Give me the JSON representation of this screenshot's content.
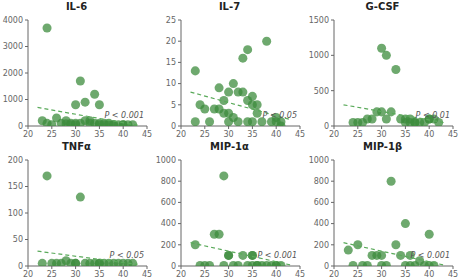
{
  "chart_data": [
    {
      "type": "scatter",
      "title": "IL-6",
      "annotation": "P < 0.001",
      "xlim": [
        20,
        45
      ],
      "xticks": [
        20,
        25,
        30,
        35,
        40,
        45
      ],
      "ylim": [
        0,
        4000
      ],
      "yticks": [
        0,
        1000,
        2000,
        3000,
        4000
      ],
      "grid": false,
      "series": [
        {
          "type": "scatter",
          "color": "#3d8c3d",
          "marker": "circle",
          "x": [
            23,
            24,
            24,
            25,
            26,
            27,
            28,
            28,
            29,
            29,
            30,
            30,
            30,
            31,
            31,
            32,
            32,
            33,
            33,
            34,
            34,
            35,
            35,
            35,
            36,
            36,
            37,
            37,
            38,
            38,
            39,
            40,
            40,
            41,
            42
          ],
          "values": [
            200,
            3700,
            100,
            50,
            300,
            100,
            80,
            200,
            100,
            50,
            800,
            100,
            50,
            1700,
            100,
            900,
            200,
            200,
            100,
            1200,
            100,
            800,
            100,
            50,
            50,
            100,
            100,
            50,
            50,
            50,
            50,
            50,
            50,
            50,
            50
          ]
        },
        {
          "type": "line",
          "color": "#5aaa5a",
          "line_style": "dashed",
          "x": [
            22,
            43
          ],
          "values": [
            700,
            30
          ]
        }
      ]
    },
    {
      "type": "scatter",
      "title": "IL-7",
      "annotation": "P < 0.05",
      "xlim": [
        20,
        45
      ],
      "xticks": [
        20,
        25,
        30,
        35,
        40,
        45
      ],
      "ylim": [
        0,
        25
      ],
      "yticks": [
        0,
        5,
        10,
        15,
        20,
        25
      ],
      "grid": false,
      "series": [
        {
          "type": "scatter",
          "color": "#3d8c3d",
          "marker": "circle",
          "x": [
            23,
            23,
            24,
            25,
            26,
            27,
            28,
            28,
            29,
            29,
            30,
            30,
            30,
            31,
            31,
            32,
            32,
            33,
            33,
            34,
            34,
            34,
            35,
            35,
            35,
            36,
            36,
            37,
            38,
            39,
            40,
            40,
            41,
            41
          ],
          "values": [
            13,
            1,
            5,
            4,
            1,
            4,
            9,
            4,
            6,
            3,
            8,
            3,
            1,
            10,
            2,
            8,
            1,
            16,
            8,
            18,
            6,
            1,
            7,
            5,
            1,
            5,
            3,
            1,
            20,
            1,
            2,
            1,
            1,
            0
          ]
        },
        {
          "type": "line",
          "color": "#5aaa5a",
          "line_style": "dashed",
          "x": [
            22,
            43
          ],
          "values": [
            8,
            1.5
          ]
        }
      ]
    },
    {
      "type": "scatter",
      "title": "G-CSF",
      "annotation": "P < 0.01",
      "xlim": [
        20,
        45
      ],
      "xticks": [
        20,
        25,
        30,
        35,
        40,
        45
      ],
      "ylim": [
        0,
        1500
      ],
      "yticks": [
        0,
        500,
        1000,
        1500
      ],
      "grid": false,
      "series": [
        {
          "type": "scatter",
          "color": "#3d8c3d",
          "marker": "circle",
          "x": [
            24,
            25,
            26,
            27,
            28,
            29,
            30,
            30,
            31,
            31,
            32,
            33,
            34,
            35,
            35,
            36,
            36,
            37,
            37,
            38,
            39,
            40,
            40,
            41,
            42
          ],
          "values": [
            50,
            50,
            50,
            100,
            100,
            200,
            1100,
            200,
            1000,
            100,
            200,
            800,
            100,
            50,
            100,
            100,
            50,
            50,
            50,
            50,
            50,
            100,
            100,
            100,
            50
          ]
        },
        {
          "type": "line",
          "color": "#5aaa5a",
          "line_style": "dashed",
          "x": [
            22,
            43
          ],
          "values": [
            300,
            50
          ]
        }
      ]
    },
    {
      "type": "scatter",
      "title": "TNFα",
      "annotation": "P < 0.05",
      "xlim": [
        20,
        45
      ],
      "xticks": [
        20,
        25,
        30,
        35,
        40,
        45
      ],
      "ylim": [
        0,
        200
      ],
      "yticks": [
        0,
        50,
        100,
        150,
        200
      ],
      "grid": false,
      "series": [
        {
          "type": "scatter",
          "color": "#3d8c3d",
          "marker": "circle",
          "x": [
            23,
            24,
            25,
            26,
            27,
            28,
            29,
            30,
            30,
            31,
            32,
            33,
            34,
            35,
            35,
            36,
            37,
            38,
            39,
            40,
            41,
            42
          ],
          "values": [
            5,
            170,
            5,
            5,
            5,
            10,
            5,
            5,
            5,
            130,
            5,
            5,
            5,
            5,
            5,
            5,
            5,
            5,
            5,
            5,
            5,
            5
          ]
        },
        {
          "type": "line",
          "color": "#5aaa5a",
          "line_style": "dashed",
          "x": [
            22,
            43
          ],
          "values": [
            28,
            3
          ]
        }
      ]
    },
    {
      "type": "scatter",
      "title": "MIP-1α",
      "annotation": "P < 0.001",
      "xlim": [
        20,
        45
      ],
      "xticks": [
        20,
        25,
        30,
        35,
        40,
        45
      ],
      "ylim": [
        0,
        1000
      ],
      "yticks": [
        0,
        200,
        400,
        600,
        800,
        1000
      ],
      "grid": false,
      "series": [
        {
          "type": "scatter",
          "color": "#3d8c3d",
          "marker": "circle",
          "x": [
            23,
            24,
            25,
            26,
            27,
            28,
            29,
            29,
            30,
            30,
            31,
            32,
            33,
            34,
            35,
            35,
            35,
            36,
            36,
            37,
            38,
            39,
            40,
            40,
            41
          ],
          "values": [
            200,
            5,
            5,
            5,
            300,
            300,
            5,
            850,
            100,
            100,
            5,
            5,
            100,
            5,
            100,
            100,
            5,
            5,
            5,
            5,
            5,
            5,
            5,
            5,
            5
          ]
        },
        {
          "type": "line",
          "color": "#5aaa5a",
          "line_style": "dashed",
          "x": [
            22,
            43
          ],
          "values": [
            220,
            10
          ]
        }
      ]
    },
    {
      "type": "scatter",
      "title": "MIP-1β",
      "annotation": "P < 0.001",
      "xlim": [
        20,
        45
      ],
      "xticks": [
        20,
        25,
        30,
        35,
        40,
        45
      ],
      "ylim": [
        0,
        1000
      ],
      "yticks": [
        0,
        200,
        400,
        600,
        800,
        1000
      ],
      "grid": false,
      "series": [
        {
          "type": "scatter",
          "color": "#3d8c3d",
          "marker": "circle",
          "x": [
            23,
            24,
            25,
            26,
            27,
            28,
            29,
            30,
            30,
            31,
            32,
            33,
            34,
            35,
            35,
            36,
            36,
            37,
            38,
            39,
            40,
            40,
            41
          ],
          "values": [
            150,
            5,
            200,
            5,
            5,
            100,
            100,
            100,
            5,
            5,
            800,
            200,
            100,
            400,
            5,
            100,
            5,
            5,
            50,
            5,
            5,
            300,
            5
          ]
        },
        {
          "type": "line",
          "color": "#5aaa5a",
          "line_style": "dashed",
          "x": [
            22,
            43
          ],
          "values": [
            220,
            10
          ]
        }
      ]
    }
  ]
}
